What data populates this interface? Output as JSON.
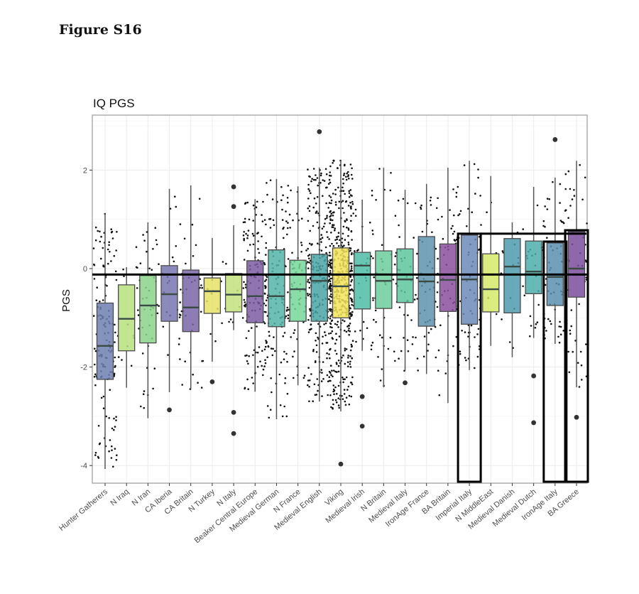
{
  "figure": {
    "label": "Figure S16"
  },
  "chart_data": {
    "type": "boxplot",
    "title": "IQ PGS",
    "xlabel": "",
    "ylabel": "PGS",
    "ylim": [
      -4.4,
      3.1
    ],
    "yticks": [
      2,
      0,
      -2,
      -4
    ],
    "grid": true,
    "reference_line": {
      "y": -0.12,
      "color": "#000000"
    },
    "categories": [
      "Hunter Gatherers",
      "N Iraq",
      "N Iran",
      "CA Iberia",
      "CA Britain",
      "N Turkey",
      "N Italy",
      "Beaker Central Europe",
      "Medieval German",
      "N France",
      "Medieval English",
      "Viking",
      "Medieval Irish",
      "N Britain",
      "Medieval Italy",
      "IronAge France",
      "BA Britain",
      "Imperial Italy",
      "N MiddleEast",
      "Medieval Danish",
      "Medieval Dutch",
      "IronAge Italy",
      "BA Greece"
    ],
    "series": [
      {
        "name": "Hunter Gatherers",
        "color": "#6f7fb3",
        "min": -4.07,
        "q1": -2.25,
        "median": -1.57,
        "q3": -0.7,
        "max": 1.12,
        "n_points": 140,
        "outliers": []
      },
      {
        "name": "N Iraq",
        "color": "#b6e07c",
        "min": -2.42,
        "q1": -1.67,
        "median": -1.02,
        "q3": -0.33,
        "max": 0.03,
        "n_points": 12,
        "outliers": []
      },
      {
        "name": "N Iran",
        "color": "#8ad48a",
        "min": -3.04,
        "q1": -1.51,
        "median": -0.75,
        "q3": -0.14,
        "max": 0.94,
        "n_points": 50,
        "outliers": []
      },
      {
        "name": "CA Iberia",
        "color": "#7876b0",
        "min": -2.51,
        "q1": -1.07,
        "median": -0.52,
        "q3": 0.06,
        "max": 1.62,
        "n_points": 20,
        "outliers": [
          -2.87
        ]
      },
      {
        "name": "CA Britain",
        "color": "#7a65a8",
        "min": -2.45,
        "q1": -1.28,
        "median": -0.79,
        "q3": -0.03,
        "max": 1.69,
        "n_points": 35,
        "outliers": []
      },
      {
        "name": "N Turkey",
        "color": "#e6e066",
        "min": -1.89,
        "q1": -0.91,
        "median": -0.46,
        "q3": -0.19,
        "max": 0.62,
        "n_points": 15,
        "outliers": [
          -2.3
        ]
      },
      {
        "name": "N Italy",
        "color": "#c3e07c",
        "min": -1.25,
        "q1": -0.88,
        "median": -0.53,
        "q3": -0.1,
        "max": 0.88,
        "n_points": 10,
        "outliers": [
          1.66,
          1.26,
          -2.92,
          -3.35
        ]
      },
      {
        "name": "Beaker Central Europe",
        "color": "#7d5ca5",
        "min": -2.5,
        "q1": -1.1,
        "median": -0.56,
        "q3": 0.16,
        "max": 1.41,
        "n_points": 130,
        "outliers": []
      },
      {
        "name": "Medieval German",
        "color": "#53b5a8",
        "min": -3.06,
        "q1": -1.18,
        "median": -0.56,
        "q3": 0.38,
        "max": 1.82,
        "n_points": 120,
        "outliers": []
      },
      {
        "name": "N France",
        "color": "#76d69a",
        "min": -2.37,
        "q1": -1.07,
        "median": -0.42,
        "q3": 0.17,
        "max": 1.67,
        "n_points": 80,
        "outliers": []
      },
      {
        "name": "Medieval English",
        "color": "#4aa5a5",
        "min": -2.7,
        "q1": -1.07,
        "median": -0.25,
        "q3": 0.29,
        "max": 2.05,
        "n_points": 260,
        "outliers": [
          2.78
        ]
      },
      {
        "name": "Viking",
        "color": "#f2e35c",
        "min": -2.9,
        "q1": -1.0,
        "median": -0.36,
        "q3": 0.42,
        "max": 2.2,
        "n_points": 480,
        "outliers": [
          -3.97
        ]
      },
      {
        "name": "Medieval Irish",
        "color": "#4fbca6",
        "min": -1.67,
        "q1": -0.82,
        "median": 0.06,
        "q3": 0.33,
        "max": 1.4,
        "n_points": 40,
        "outliers": [
          -2.6,
          -3.2
        ]
      },
      {
        "name": "N Britain",
        "color": "#6ccd9c",
        "min": -2.41,
        "q1": -0.81,
        "median": -0.25,
        "q3": 0.36,
        "max": 2.05,
        "n_points": 35,
        "outliers": []
      },
      {
        "name": "Medieval Italy",
        "color": "#5ec79e",
        "min": -2.08,
        "q1": -0.69,
        "median": -0.22,
        "q3": 0.4,
        "max": 1.6,
        "n_points": 40,
        "outliers": [
          -2.32
        ]
      },
      {
        "name": "IronAge France",
        "color": "#5e93ad",
        "min": -2.14,
        "q1": -1.17,
        "median": -0.26,
        "q3": 0.65,
        "max": 1.72,
        "n_points": 50,
        "outliers": []
      },
      {
        "name": "BA Britain",
        "color": "#8a4f9e",
        "min": -2.73,
        "q1": -0.87,
        "median": -0.23,
        "q3": 0.5,
        "max": 2.05,
        "n_points": 50,
        "outliers": []
      },
      {
        "name": "Imperial Italy",
        "color": "#6b8ab8",
        "min": -2.06,
        "q1": -1.13,
        "median": -0.22,
        "q3": 0.68,
        "max": 2.19,
        "n_points": 60,
        "outliers": []
      },
      {
        "name": "N MiddleEast",
        "color": "#d6ea6a",
        "min": -1.57,
        "q1": -0.88,
        "median": -0.42,
        "q3": 0.3,
        "max": 1.88,
        "n_points": 10,
        "outliers": []
      },
      {
        "name": "Medieval Danish",
        "color": "#4d9aae",
        "min": -1.8,
        "q1": -0.9,
        "median": 0.04,
        "q3": 0.61,
        "max": 0.94,
        "n_points": 12,
        "outliers": []
      },
      {
        "name": "Medieval Dutch",
        "color": "#4eaeab",
        "min": -1.41,
        "q1": -0.51,
        "median": -0.06,
        "q3": 0.56,
        "max": 1.66,
        "n_points": 25,
        "outliers": [
          -2.18,
          -3.13
        ]
      },
      {
        "name": "IronAge Italy",
        "color": "#5a90b0",
        "min": -1.53,
        "q1": -0.75,
        "median": -0.17,
        "q3": 0.52,
        "max": 1.85,
        "n_points": 60,
        "outliers": [
          2.62
        ]
      },
      {
        "name": "BA Greece",
        "color": "#7a4d9c",
        "min": -2.41,
        "q1": -0.58,
        "median": 0.0,
        "q3": 0.75,
        "max": 2.19,
        "n_points": 50,
        "outliers": [
          -3.02
        ]
      }
    ],
    "highlighted": [
      "Imperial Italy",
      "IronAge Italy",
      "BA Greece"
    ]
  }
}
